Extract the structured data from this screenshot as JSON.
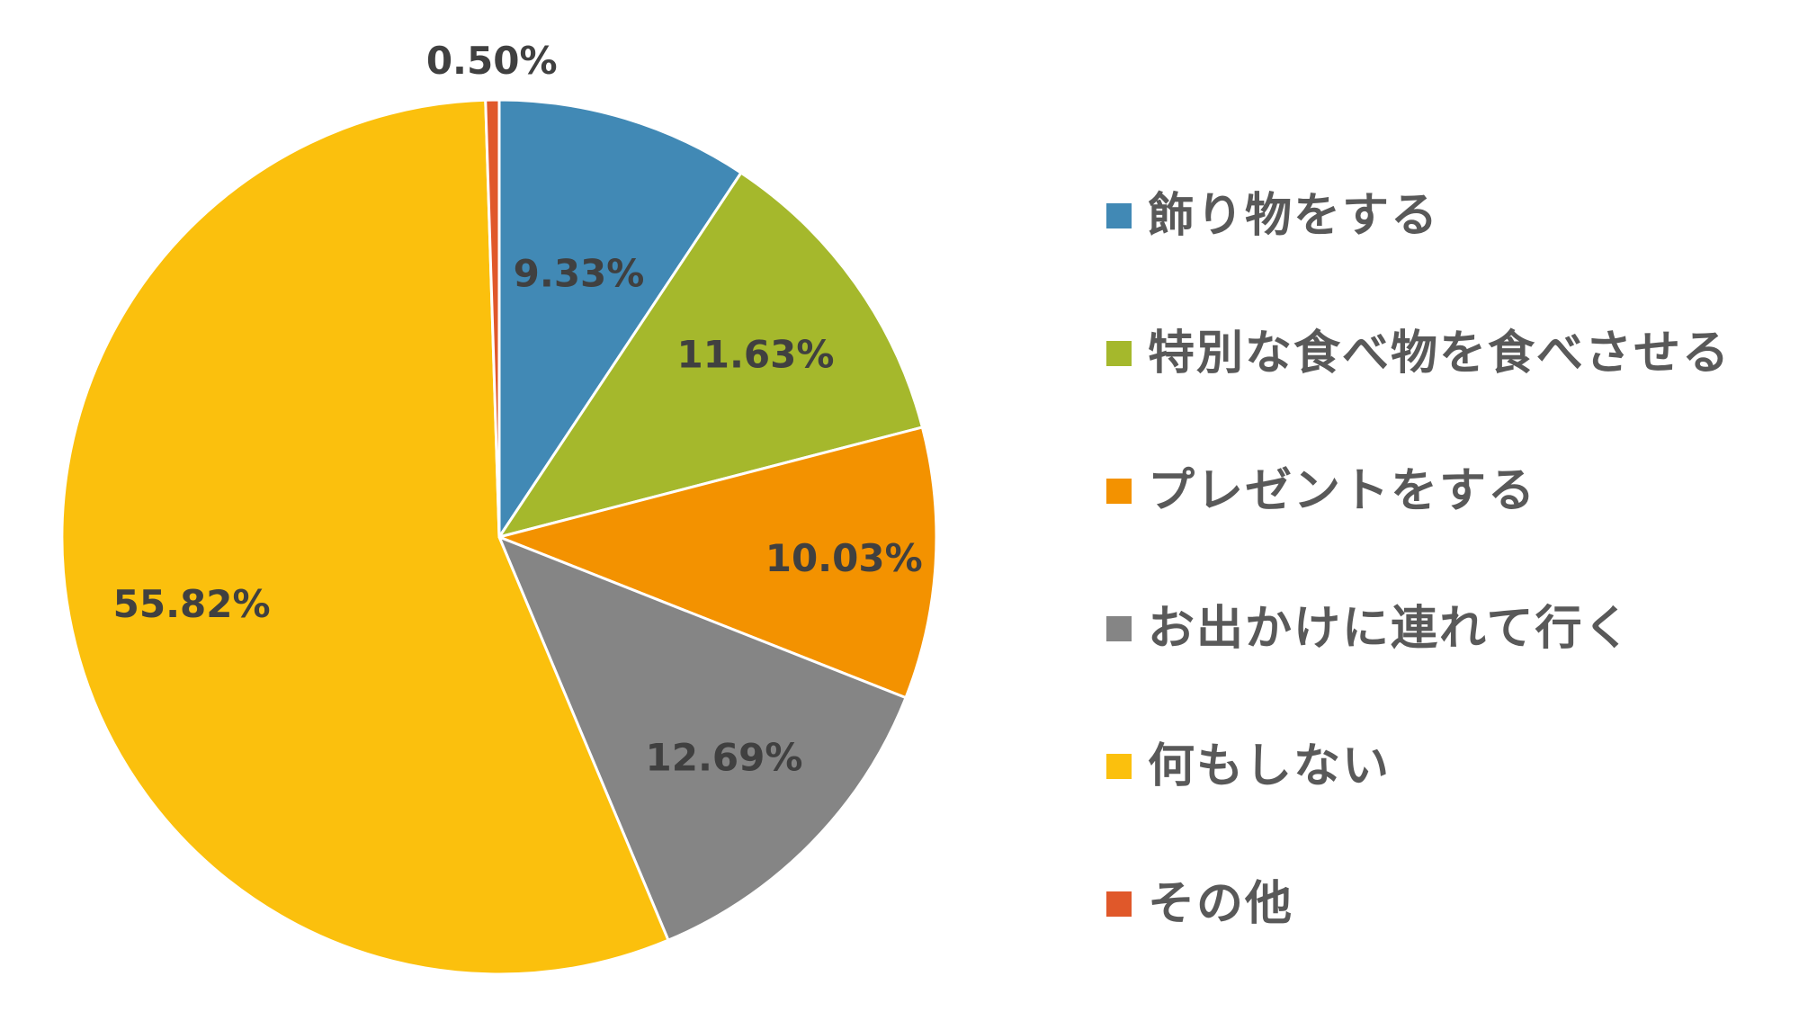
{
  "chart_data": {
    "type": "pie",
    "categories": [
      "飾り物をする",
      "特別な食べ物を食べさせる",
      "プレゼントをする",
      "お出かけに連れて行く",
      "何もしない",
      "その他"
    ],
    "values": [
      9.33,
      11.63,
      10.03,
      12.69,
      55.82,
      0.5
    ],
    "data_labels": [
      "9.33%",
      "11.63%",
      "10.03%",
      "12.69%",
      "55.82%",
      "0.50%"
    ],
    "colors": [
      "#4189B5",
      "#A5B82C",
      "#F39200",
      "#858585",
      "#FBC00D",
      "#E0582A"
    ],
    "legend_position": "right",
    "title": "",
    "start_angle": "top (12 o'clock)",
    "direction": "clockwise"
  }
}
